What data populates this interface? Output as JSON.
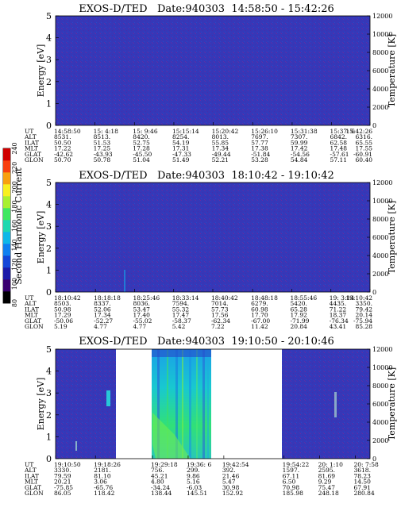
{
  "colorbar": {
    "label": "Second Harmonic Current",
    "ticks": [
      "240",
      "220",
      "200",
      "180",
      "160",
      "140",
      "120",
      "100",
      "80"
    ],
    "range": [
      80,
      240
    ],
    "colors": [
      "#000000",
      "#3a0070",
      "#1a1aa8",
      "#1446d8",
      "#1080f0",
      "#10b8e8",
      "#20d8b0",
      "#40e860",
      "#a8f030",
      "#f8f020",
      "#f8a010",
      "#f84010",
      "#d00000"
    ]
  },
  "panels": [
    {
      "title": "EXOS-D/TED   Date:940303  14:58:50 - 15:42:26",
      "ylabel_left": "Energy [eV]",
      "ylabel_right": "Temperature [K]",
      "yticks_left": [
        "5",
        "4",
        "3",
        "2",
        "1",
        "0"
      ],
      "yticks_right": [
        "12000",
        "10000",
        "8000",
        "6000",
        "4000",
        "2000",
        "0"
      ],
      "row_labels": [
        "UT",
        "ALT",
        "ILAT",
        "MLT",
        "GLAT",
        "GLON"
      ],
      "columns": [
        [
          "14:58:50",
          "8531.",
          "50.50",
          "17.22",
          "-42.62",
          "50.70"
        ],
        [
          "15: 4:18",
          "8513.",
          "51.53",
          "17.25",
          "-43.93",
          "50.78"
        ],
        [
          "15: 9:46",
          "8420.",
          "52.75",
          "17.28",
          "-45.50",
          "51.04"
        ],
        [
          "15:15:14",
          "8254.",
          "54.19",
          "17.31",
          "-47.33",
          "51.49"
        ],
        [
          "15:20:42",
          "8013.",
          "55.85",
          "17.34",
          "-49.44",
          "52.21"
        ],
        [
          "15:26:10",
          "7697.",
          "57.77",
          "17.38",
          "-51.84",
          "53.28"
        ],
        [
          "15:31:38",
          "7307.",
          "59.99",
          "17.42",
          "-54.56",
          "54.84"
        ],
        [
          "15:37: 6",
          "6842.",
          "62.58",
          "17.48",
          "-57.61",
          "57.11"
        ],
        [
          "15:42:26",
          "6316.",
          "65.55",
          "17.55",
          "-60.91",
          "60.40"
        ]
      ]
    },
    {
      "title": "EXOS-D/TED   Date:940303  18:10:42 - 19:10:42",
      "ylabel_left": "Energy [eV]",
      "ylabel_right": "Temperature [K]",
      "yticks_left": [
        "5",
        "4",
        "3",
        "2",
        "1",
        "0"
      ],
      "yticks_right": [
        "12000",
        "10000",
        "8000",
        "6000",
        "4000",
        "2000",
        "0"
      ],
      "row_labels": [
        "UT",
        "ALT",
        "ILAT",
        "MLT",
        "GLAT",
        "GLON"
      ],
      "columns": [
        [
          "18:10:42",
          "8503.",
          "50.98",
          "17.29",
          "-50.06",
          "5.19"
        ],
        [
          "18:18:18",
          "8337.",
          "52.06",
          "17.34",
          "-52.27",
          "4.77"
        ],
        [
          "18:25:46",
          "8036.",
          "53.47",
          "17.40",
          "-55.02",
          "4.77"
        ],
        [
          "18:33:14",
          "7594.",
          "55.32",
          "17.47",
          "-58.37",
          "5.42"
        ],
        [
          "18:40:42",
          "7014.",
          "57.73",
          "17.56",
          "-62.34",
          "7.22"
        ],
        [
          "18:48:18",
          "6279.",
          "60.98",
          "17.70",
          "-67.00",
          "11.42"
        ],
        [
          "18:55:46",
          "5420.",
          "65.28",
          "17.92",
          "-71.99",
          "20.84"
        ],
        [
          "19: 3:14",
          "4435.",
          "71.22",
          "18.37",
          "-76.34",
          "43.41"
        ],
        [
          "19:10:42",
          "3350.",
          "79.42",
          "20.14",
          "-75.94",
          "85.28"
        ]
      ]
    },
    {
      "title": "EXOS-D/TED   Date:940303  19:10:50 - 20:10:46",
      "ylabel_left": "Energy [eV]",
      "ylabel_right": "Temperature [K]",
      "yticks_left": [
        "5",
        "4",
        "3",
        "2",
        "1",
        "0"
      ],
      "yticks_right": [
        "12000",
        "10000",
        "8000",
        "6000",
        "4000",
        "2000",
        "0"
      ],
      "row_labels": [
        "UT",
        "ALT",
        "ILAT",
        "MLT",
        "GLAT",
        "GLON"
      ],
      "columns": [
        [
          "19:10:50",
          "3330.",
          "79.59",
          "20.21",
          "-75.85",
          "86.05"
        ],
        [
          "19:18:26",
          "2181.",
          "81.10",
          "3.06",
          "-65.76",
          "118.42"
        ],
        [
          "19:29:18",
          "756.",
          "45.21",
          "4.80",
          "-34.24",
          "138.44"
        ],
        [
          "19:36: 6",
          "299.",
          "9.86",
          "5.16",
          "-6.03",
          "145.51"
        ],
        [
          "19:42:54",
          "392.",
          "21.46",
          "5.47",
          "30.98",
          "152.92"
        ],
        [
          "19:54:22",
          "1597.",
          "67.11",
          "6.50",
          "70.98",
          "185.98"
        ],
        [
          "20: 1:10",
          "2595.",
          "81.69",
          "9.29",
          "75.47",
          "248.18"
        ],
        [
          "20: 7:58",
          "3618.",
          "78.23",
          "14.50",
          "67.91",
          "280.84"
        ]
      ]
    }
  ],
  "chart_data": [
    {
      "type": "heatmap",
      "title": "EXOS-D/TED   Date:940303  14:58:50 - 15:42:26",
      "ylabel": "Energy [eV]",
      "ylabel_right": "Temperature [K]",
      "ylim": [
        0,
        5
      ],
      "ylim_right": [
        0,
        12000
      ],
      "x": [
        "14:58:50",
        "15: 4:18",
        "15: 9:46",
        "15:15:14",
        "15:20:42",
        "15:26:10",
        "15:31:38",
        "15:37: 6",
        "15:42:26"
      ],
      "value_range": [
        80,
        240
      ],
      "dominant_value": 110
    },
    {
      "type": "heatmap",
      "title": "EXOS-D/TED   Date:940303  18:10:42 - 19:10:42",
      "ylabel": "Energy [eV]",
      "ylabel_right": "Temperature [K]",
      "ylim": [
        0,
        5
      ],
      "ylim_right": [
        0,
        12000
      ],
      "x": [
        "18:10:42",
        "18:18:18",
        "18:25:46",
        "18:33:14",
        "18:40:42",
        "18:48:18",
        "18:55:46",
        "19: 3:14",
        "19:10:42"
      ],
      "value_range": [
        80,
        240
      ],
      "dominant_value": 110
    },
    {
      "type": "heatmap",
      "title": "EXOS-D/TED   Date:940303  19:10:50 - 20:10:46",
      "ylabel": "Energy [eV]",
      "ylabel_right": "Temperature [K]",
      "ylim": [
        0,
        5
      ],
      "ylim_right": [
        0,
        12000
      ],
      "x": [
        "19:10:50",
        "19:18:26",
        "19:29:18",
        "19:36: 6",
        "19:42:54",
        "19:54:22",
        "20: 1:10",
        "20: 7:58"
      ],
      "value_range": [
        80,
        240
      ],
      "data_gaps": [
        [
          "19:24:00",
          "19:29:18"
        ],
        [
          "19:45:40",
          "19:54:22"
        ]
      ],
      "enhanced_interval": [
        "19:29:18",
        "19:45:40"
      ],
      "enhanced_value_range": [
        150,
        200
      ]
    }
  ]
}
